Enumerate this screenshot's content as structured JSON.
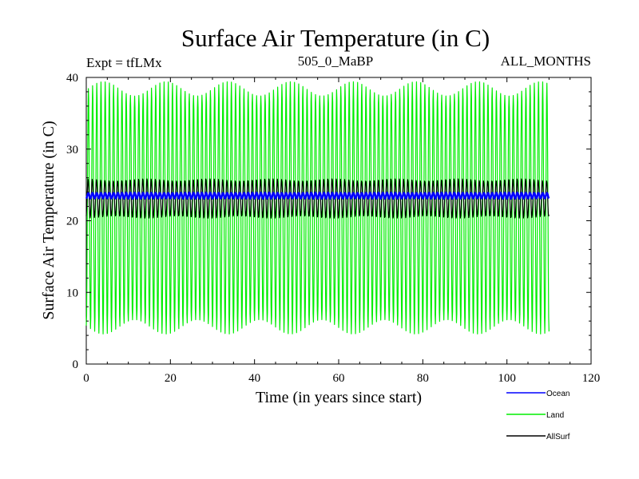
{
  "chart_data": {
    "type": "line",
    "title": "Surface Air Temperature (in C)",
    "subtitle_left": "Expt = tfLMx",
    "subtitle_center": "505_0_MaBP",
    "subtitle_right": "ALL_MONTHS",
    "xlabel": "Time (in years since start)",
    "ylabel": "Surface Air Temperature (in C)",
    "xlim": [
      0,
      120
    ],
    "ylim": [
      0,
      40
    ],
    "x_ticks": [
      0,
      20,
      40,
      60,
      80,
      100,
      120
    ],
    "y_ticks": [
      0,
      10,
      20,
      30,
      40
    ],
    "x_tick_labels": [
      "0",
      "20",
      "40",
      "60",
      "80",
      "100",
      "120"
    ],
    "y_tick_labels": [
      "0",
      "10",
      "20",
      "30",
      "40"
    ],
    "grid": false,
    "legend_position": "bottom-right, below plot",
    "x_range_data": [
      0,
      110
    ],
    "series": [
      {
        "name": "Ocean",
        "color": "#0000ff",
        "mean": 23.5,
        "amplitude": 0.4,
        "period_years": 1,
        "min": 23.0,
        "max": 24.0
      },
      {
        "name": "Land",
        "color": "#00ee00",
        "mean": 21.8,
        "amplitude": 16.6,
        "period_years": 1,
        "min": 4.8,
        "max": 38.9
      },
      {
        "name": "AllSurf",
        "color": "#000000",
        "mean": 23.1,
        "amplitude": 2.6,
        "period_years": 1,
        "min": 20.3,
        "max": 25.8
      }
    ]
  }
}
